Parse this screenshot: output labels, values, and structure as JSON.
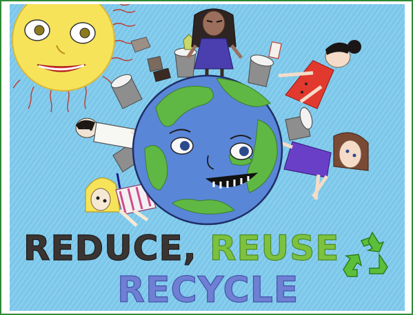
{
  "slogan": {
    "word1": "REDUCE,",
    "word2": "REUSE",
    "word3": "RECYCLE"
  },
  "colors": {
    "border": "#2f8a35",
    "sky": "#7cc7ea",
    "sun": "#f6e35a",
    "ocean": "#5a86d8",
    "land": "#5fb844",
    "reduce": "#3a3533",
    "reuse": "#7cc23f",
    "recycle": "#6f7fd3",
    "recycle_symbol": "#5cbf3a"
  },
  "icons": [
    "sun-icon",
    "earth-icon",
    "recycle-symbol-icon",
    "trash-bin-icon"
  ]
}
